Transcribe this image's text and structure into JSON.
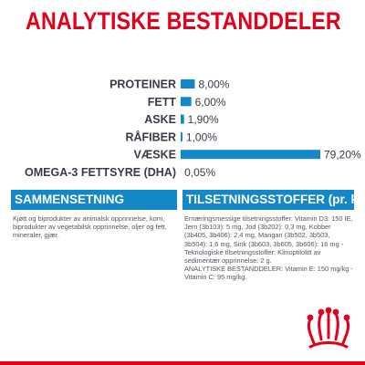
{
  "title": "ANALYTISKE BESTANDDELER",
  "chart_data": {
    "type": "bar",
    "orientation": "horizontal",
    "title": "ANALYTISKE BESTANDDELER",
    "categories": [
      "PROTEINER",
      "FETT",
      "ASKE",
      "RÅFIBER",
      "VÆSKE",
      "OMEGA-3 FETTSYRE (DHA)"
    ],
    "values": [
      8.0,
      6.0,
      1.9,
      1.0,
      79.2,
      0.05
    ],
    "value_labels": [
      "8,00%",
      "6,00%",
      "1,90%",
      "1,00%",
      "79,20%",
      "0,05%"
    ],
    "unit": "%",
    "xlim": [
      0,
      79.2
    ],
    "grid": false,
    "bar_color": "#1387c7"
  },
  "sections": {
    "composition": {
      "header": "SAMMENSETNING",
      "text": "Kjøtt og biprodukter av animalsk opprinnelse, korn, biprodukter av vegetabilsk opprinnelse, oljer og fett, mineraler, gjær."
    },
    "additives": {
      "header": "TILSETNINGSSTOFFER (pr. kg)",
      "text": "Ernæringsmessige tilsetningsstoffer: Vitamin D3: 150 IE, Jern (3b103): 5 mg, Jod (3b202): 0,3 mg, Kobber (3b405, 3b406): 2,4 mg, Mangan (3b502, 3b503, 3b504): 1,6 mg, Sink (3b603, 3b605, 3b606): 16 mg - Teknologiske tilsetningsstoffer: Klinoptilolitt av sedimentær opprinnelse: 2 g.\nANALYTISKE BESTANDDELER: Vitamin E: 150 mg/kg - Vitamin C: 95 mg/kg."
    }
  },
  "logo": {
    "icon": "royal-canin-crown-icon",
    "color": "#e2001a"
  }
}
